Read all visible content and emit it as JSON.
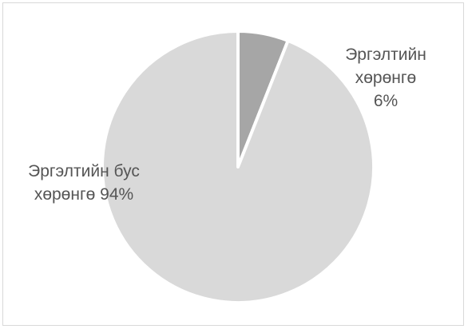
{
  "chart_data": {
    "type": "pie",
    "title": "",
    "slices": [
      {
        "name": "Эргэлтийн хөрөнгө",
        "value": 6,
        "color": "#a6a6a6",
        "label_lines": [
          "Эргэлтийн",
          "хөрөнгө",
          "6%"
        ]
      },
      {
        "name": "Эргэлтийн бус хөрөнгө",
        "value": 94,
        "color": "#d9d9d9",
        "label_lines": [
          "Эргэлтийн бус",
          "хөрөнгө 94%"
        ]
      }
    ],
    "legend": "none",
    "start_angle": "12 o'clock",
    "direction": "clockwise"
  }
}
